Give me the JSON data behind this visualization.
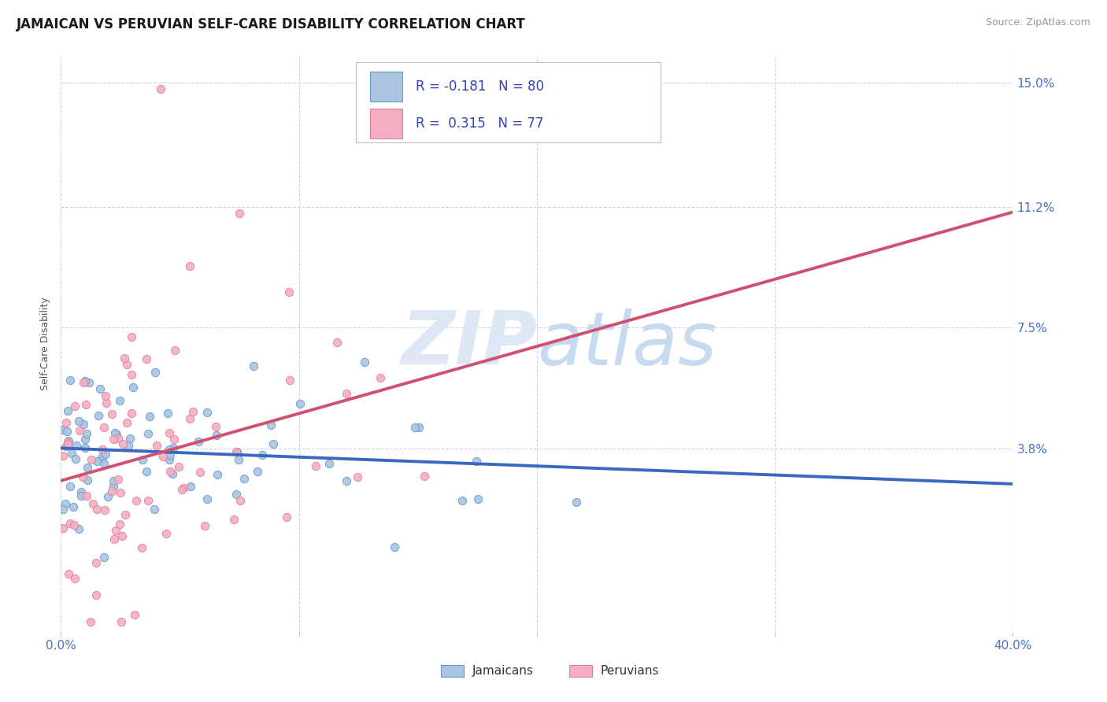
{
  "title": "JAMAICAN VS PERUVIAN SELF-CARE DISABILITY CORRELATION CHART",
  "source": "Source: ZipAtlas.com",
  "ylabel": "Self-Care Disability",
  "xmin": 0.0,
  "xmax": 0.4,
  "ymin": -0.018,
  "ymax": 0.158,
  "jamaicans_color": "#aac4e2",
  "peruvians_color": "#f4aec0",
  "jamaicans_edge_color": "#6699cc",
  "peruvians_edge_color": "#e080a0",
  "jamaicans_line_color": "#3a68c0",
  "peruvians_line_color": "#d05070",
  "dashed_line_color": "#e0a0b0",
  "grid_color": "#c8d4e8",
  "background_color": "#ffffff",
  "title_fontsize": 12,
  "source_fontsize": 9,
  "axis_label_fontsize": 9,
  "tick_fontsize": 11,
  "tick_color": "#4472c4",
  "legend_text_color": "#3344aa",
  "watermark_color": "#dde8f4",
  "R_jamaicans": -0.181,
  "N_jamaicans": 80,
  "R_peruvians": 0.315,
  "N_peruvians": 77,
  "ytick_values": [
    0.038,
    0.075,
    0.112,
    0.15
  ],
  "ytick_labels": [
    "3.8%",
    "7.5%",
    "11.2%",
    "15.0%"
  ],
  "xtick_values": [
    0.0,
    0.1,
    0.2,
    0.3,
    0.4
  ],
  "xtick_labels": [
    "0.0%",
    "",
    "",
    "",
    "40.0%"
  ]
}
